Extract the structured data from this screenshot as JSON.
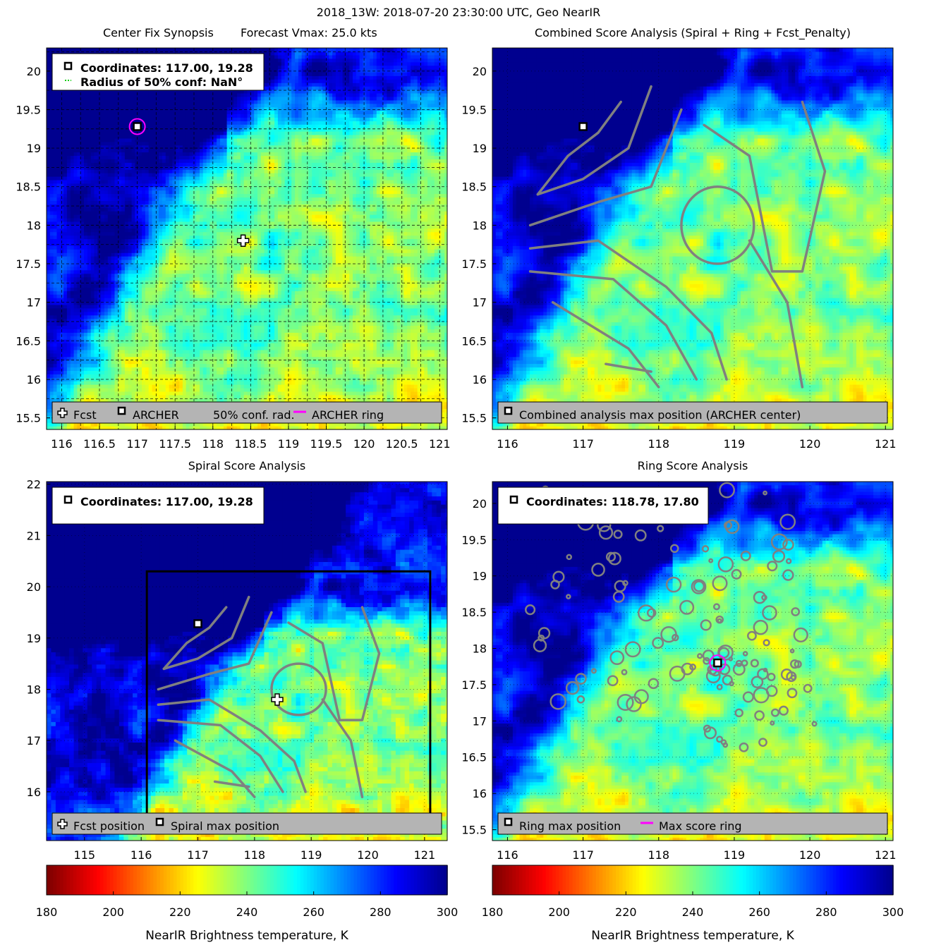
{
  "suptitle": "2018_13W: 2018-07-20 23:30:00 UTC, Geo NearIR",
  "colorscale": {
    "stops": [
      "#7f0000",
      "#ff0000",
      "#ff8000",
      "#ffff00",
      "#80ff80",
      "#00ffff",
      "#0080ff",
      "#0000ff",
      "#00008f"
    ],
    "note_direction": "cold(blue)=300K, warm(red)=180K"
  },
  "colors": {
    "contour": "#808080",
    "ring": "#ff00ff",
    "legend_bg": "#b4b4b4"
  },
  "chart_data": [
    {
      "type": "heatmap",
      "id": "center-fix",
      "title_left": "Center Fix Synopsis",
      "title_right": "Forecast Vmax: 25.0 kts",
      "xlim": [
        115.8,
        121.1
      ],
      "ylim": [
        15.35,
        20.3
      ],
      "xticks": [
        "116",
        "116.5",
        "117",
        "117.5",
        "118",
        "118.5",
        "119",
        "119.5",
        "120",
        "120.5",
        "121"
      ],
      "yticks": [
        "15.5",
        "16",
        "16.5",
        "17",
        "17.5",
        "18",
        "18.5",
        "19",
        "19.5",
        "20"
      ],
      "dense_grid": true,
      "info_lines": [
        "Coordinates: 117.00, 19.28",
        "Radius of 50% conf: NaN°"
      ],
      "markers": [
        {
          "kind": "archer",
          "x": 117.0,
          "y": 19.28
        },
        {
          "kind": "ring",
          "x": 117.0,
          "y": 19.28
        },
        {
          "kind": "fcst",
          "x": 118.4,
          "y": 17.8
        }
      ],
      "legend": [
        "Fcst",
        "ARCHER",
        "50% conf. rad.",
        "ARCHER ring"
      ]
    },
    {
      "type": "heatmap",
      "id": "combined",
      "title": "Combined Score Analysis (Spiral + Ring + Fcst_Penalty)",
      "xlim": [
        115.8,
        121.1
      ],
      "ylim": [
        15.35,
        20.3
      ],
      "xticks": [
        "116",
        "117",
        "118",
        "119",
        "120",
        "121"
      ],
      "yticks": [
        "15.5",
        "16",
        "16.5",
        "17",
        "17.5",
        "18",
        "18.5",
        "19",
        "19.5",
        "20"
      ],
      "markers": [
        {
          "kind": "archer",
          "x": 117.0,
          "y": 19.28
        }
      ],
      "legend": [
        "Combined analysis max position (ARCHER center)"
      ]
    },
    {
      "type": "heatmap",
      "id": "spiral",
      "title": "Spiral Score Analysis",
      "xlim": [
        114.33,
        121.4
      ],
      "ylim": [
        15.05,
        22.05
      ],
      "xticks": [
        "115",
        "116",
        "117",
        "118",
        "119",
        "120",
        "121"
      ],
      "yticks": [
        "16",
        "17",
        "18",
        "19",
        "20",
        "21",
        "22"
      ],
      "info_lines": [
        "Coordinates: 117.00, 19.28"
      ],
      "markers": [
        {
          "kind": "archer",
          "x": 117.0,
          "y": 19.28
        },
        {
          "kind": "fcst",
          "x": 118.4,
          "y": 17.8
        }
      ],
      "box": {
        "x": [
          116.1,
          121.1
        ],
        "y": [
          15.35,
          20.3
        ]
      },
      "legend": [
        "Fcst position",
        "Spiral max position"
      ]
    },
    {
      "type": "heatmap",
      "id": "ring",
      "title": "Ring Score Analysis",
      "xlim": [
        115.8,
        121.1
      ],
      "ylim": [
        15.35,
        20.3
      ],
      "xticks": [
        "116",
        "117",
        "118",
        "119",
        "120",
        "121"
      ],
      "yticks": [
        "15.5",
        "16",
        "16.5",
        "17",
        "17.5",
        "18",
        "18.5",
        "19",
        "19.5",
        "20"
      ],
      "info_lines": [
        "Coordinates: 118.78, 17.80"
      ],
      "markers": [
        {
          "kind": "ring",
          "x": 118.78,
          "y": 17.8
        },
        {
          "kind": "archer",
          "x": 118.78,
          "y": 17.8
        }
      ],
      "legend": [
        "Ring max position",
        "Max score ring"
      ]
    }
  ],
  "colorbars": [
    {
      "ticks": [
        "180",
        "200",
        "220",
        "240",
        "260",
        "280",
        "300"
      ],
      "label": "NearIR Brightness temperature, K"
    },
    {
      "ticks": [
        "180",
        "200",
        "220",
        "240",
        "260",
        "280",
        "300"
      ],
      "label": "NearIR Brightness temperature, K"
    }
  ]
}
